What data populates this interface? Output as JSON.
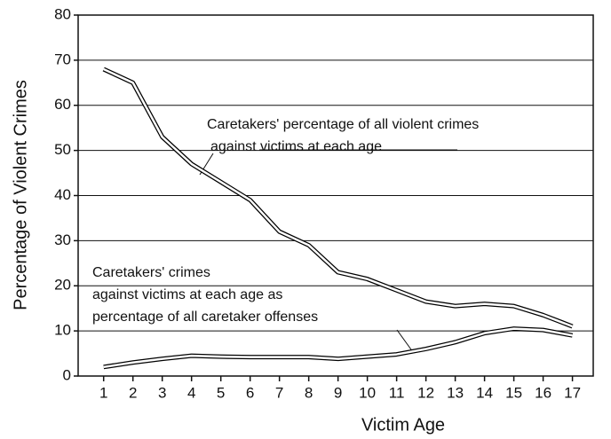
{
  "chart_data": {
    "type": "line",
    "x_label": "Victim Age",
    "y_label": "Percentage of Violent Crimes",
    "x": [
      1,
      2,
      3,
      4,
      5,
      6,
      7,
      8,
      9,
      10,
      11,
      12,
      13,
      14,
      15,
      16,
      17
    ],
    "series": [
      {
        "name": "Caretakers' percentage of all violent crimes against victims at each age",
        "color": "#000000",
        "values": [
          68,
          65,
          53,
          47,
          43,
          39,
          32,
          29,
          23,
          21.5,
          19,
          16.5,
          15.5,
          16,
          15.5,
          13.5,
          11
        ]
      },
      {
        "name": "Caretakers' crimes against victims at each age as percentage of all caretaker offenses",
        "color": "#000000",
        "values": [
          2,
          3,
          3.8,
          4.5,
          4.3,
          4.2,
          4.2,
          4.2,
          3.8,
          4.3,
          4.8,
          6,
          7.5,
          9.5,
          10.5,
          10.2,
          9
        ]
      }
    ],
    "annotations": [
      [
        "Caretakers' percentage of all violent crimes",
        "against victims at each age"
      ],
      [
        "Caretakers' crimes",
        "against victims at each age as",
        "percentage of all caretaker offenses"
      ]
    ],
    "xlim": [
      0.13,
      17.71
    ],
    "xticks": [
      1,
      2,
      3,
      4,
      5,
      6,
      7,
      8,
      9,
      10,
      11,
      12,
      13,
      14,
      15,
      16,
      17
    ],
    "ylim": [
      0,
      80
    ],
    "yticks": [
      0,
      10,
      20,
      30,
      40,
      50,
      60,
      70,
      80
    ],
    "grid": true
  }
}
